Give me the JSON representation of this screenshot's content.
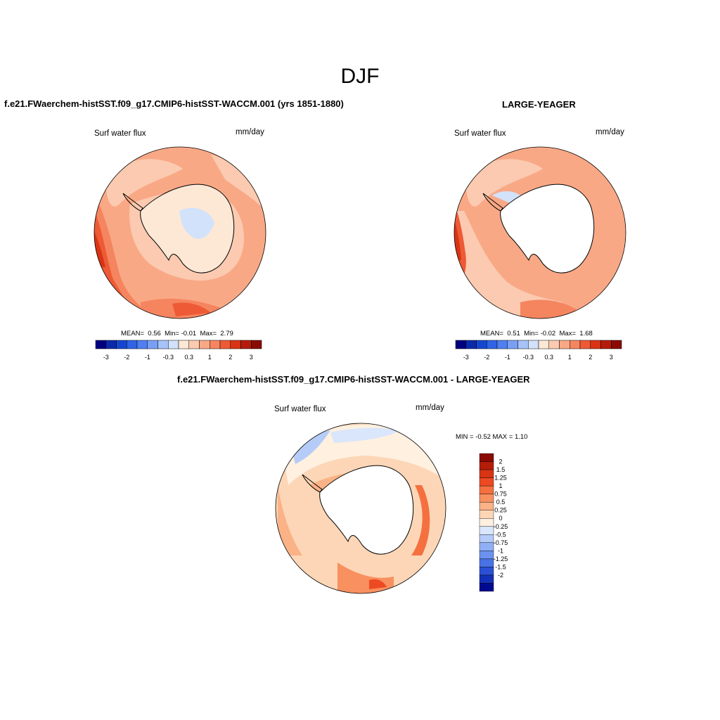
{
  "figure": {
    "season": "DJF"
  },
  "panels": {
    "left": {
      "title": "f.e21.FWaerchem-histSST.f09_g17.CMIP6-histSST-WACCM.001 (yrs 1851-1880)",
      "variable": "Surf water flux",
      "units": "mm/day",
      "stats": {
        "mean_label": "MEAN=",
        "mean": "0.56",
        "min_label": "Min=",
        "min": "-0.01",
        "max_label": "Max=",
        "max": "2.79"
      }
    },
    "right": {
      "title": "LARGE-YEAGER",
      "variable": "Surf water flux",
      "units": "mm/day",
      "stats": {
        "mean_label": "MEAN=",
        "mean": "0.51",
        "min_label": "Min=",
        "min": "-0.02",
        "max_label": "Max=",
        "max": "1.68"
      }
    },
    "diff": {
      "title": "f.e21.FWaerchem-histSST.f09_g17.CMIP6-histSST-WACCM.001 - LARGE-YEAGER",
      "variable": "Surf water flux",
      "units": "mm/day",
      "minmax_text": "MIN =  -0.52 MAX =   1.10"
    }
  },
  "colorbars": {
    "main": {
      "colors": [
        "#000080",
        "#0a2aa8",
        "#1446d0",
        "#2f64e6",
        "#5080f0",
        "#7aa0f5",
        "#a6c2f8",
        "#d2e2fa",
        "#fde8d6",
        "#fbcab0",
        "#f9a886",
        "#f5855f",
        "#ee5a36",
        "#d93414",
        "#b51c0a",
        "#8a0a04"
      ],
      "tick_labels": [
        "-3",
        "-2",
        "-1",
        "-0.3",
        "0.3",
        "1",
        "2",
        "3"
      ]
    },
    "diff": {
      "colors": [
        "#8a0a04",
        "#b51c0a",
        "#d93414",
        "#ee4a22",
        "#f5703f",
        "#f8905f",
        "#fab286",
        "#fcd6b6",
        "#fff0e0",
        "#d9e6fb",
        "#b5ccf9",
        "#90b0f6",
        "#6c92f0",
        "#4872e6",
        "#2b50d6",
        "#1530b8",
        "#000a90"
      ],
      "labels": [
        "2",
        "1.5",
        "1.25",
        "1",
        "0.75",
        "0.5",
        "0.25",
        "0",
        "-0.25",
        "-0.5",
        "-0.75",
        "-1",
        "-1.25",
        "-1.5",
        "-2"
      ]
    }
  }
}
